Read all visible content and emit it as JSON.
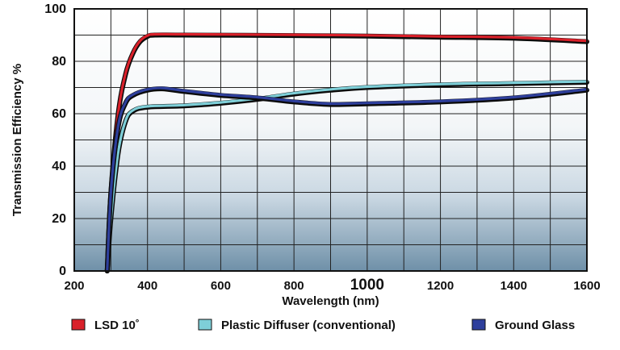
{
  "chart_data": {
    "type": "line",
    "title": "",
    "xlabel": "Wavelength (nm)",
    "ylabel": "Transmission Efficiency %",
    "xlim": [
      200,
      1600
    ],
    "ylim": [
      0,
      100
    ],
    "x_ticks": [
      200,
      400,
      600,
      800,
      1000,
      1200,
      1400,
      1600
    ],
    "x_tick_labels": [
      "200",
      "400",
      "600",
      "800",
      "1000",
      "1200",
      "1400",
      "1600"
    ],
    "y_ticks": [
      0,
      20,
      40,
      60,
      80,
      100
    ],
    "y_tick_labels": [
      "0",
      "20",
      "40",
      "60",
      "80",
      "100"
    ],
    "grid": true,
    "legend_position": "bottom",
    "series": [
      {
        "name": "LSD 10˚",
        "color": "#d9202a",
        "x": [
          290,
          300,
          320,
          340,
          360,
          380,
          400,
          420,
          500,
          800,
          1000,
          1200,
          1400,
          1600
        ],
        "y": [
          0,
          30,
          60,
          75,
          83,
          87.5,
          89.5,
          90,
          90,
          89.8,
          89.6,
          89.2,
          88.8,
          87.5
        ]
      },
      {
        "name": "Plastic Diffuser (conventional)",
        "color": "#7ecfd8",
        "x": [
          290,
          300,
          320,
          340,
          360,
          400,
          500,
          600,
          700,
          800,
          900,
          1000,
          1200,
          1400,
          1600
        ],
        "y": [
          0,
          20,
          45,
          57,
          61,
          62.5,
          63,
          64,
          65.5,
          67.5,
          69,
          70,
          71,
          71.5,
          72
        ]
      },
      {
        "name": "Ground Glass",
        "color": "#2e3f9c",
        "x": [
          290,
          300,
          320,
          340,
          360,
          400,
          440,
          500,
          600,
          700,
          800,
          900,
          1000,
          1200,
          1400,
          1600
        ],
        "y": [
          0,
          30,
          55,
          64,
          67,
          69,
          69.5,
          68.5,
          67,
          66,
          64.5,
          63.5,
          63.8,
          64.5,
          66,
          69
        ]
      }
    ]
  }
}
